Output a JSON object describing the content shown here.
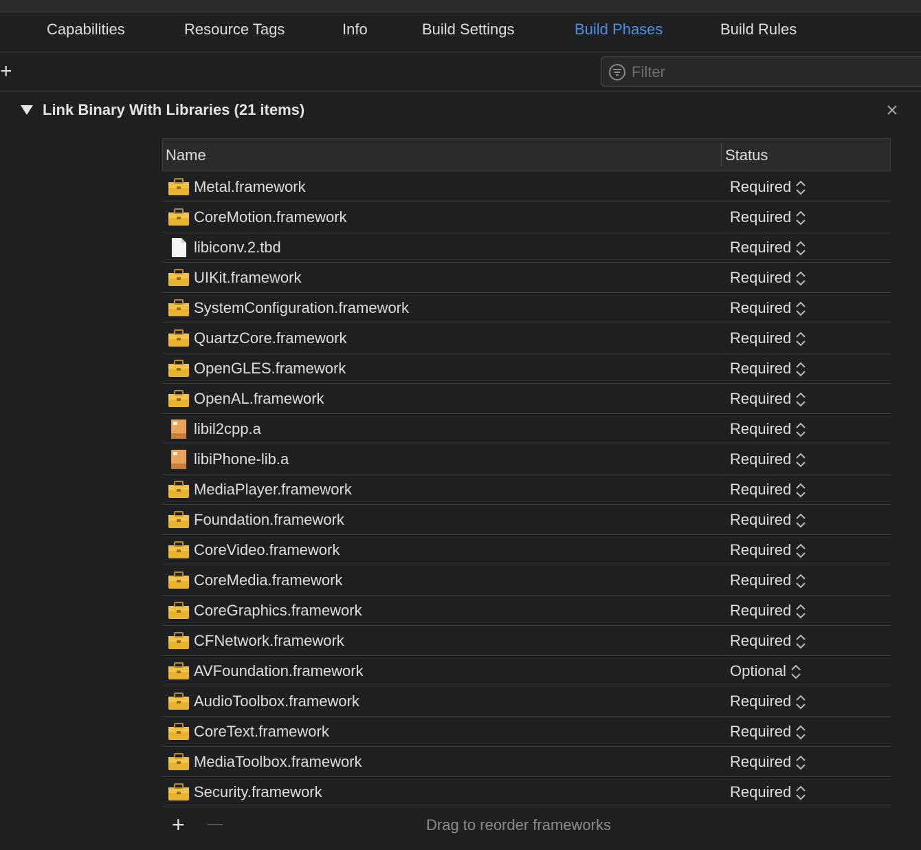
{
  "tabs": [
    {
      "label": "Capabilities",
      "selected": false
    },
    {
      "label": "Resource Tags",
      "selected": false
    },
    {
      "label": "Info",
      "selected": false
    },
    {
      "label": "Build Settings",
      "selected": false
    },
    {
      "label": "Build Phases",
      "selected": true
    },
    {
      "label": "Build Rules",
      "selected": false
    }
  ],
  "filter": {
    "placeholder": "Filter"
  },
  "phase": {
    "title": "Link Binary With Libraries (21 items)",
    "table": {
      "headers": [
        "Name",
        "Status"
      ],
      "rows": [
        {
          "name": "Metal.framework",
          "status": "Required",
          "icon": "framework"
        },
        {
          "name": "CoreMotion.framework",
          "status": "Required",
          "icon": "framework"
        },
        {
          "name": "libiconv.2.tbd",
          "status": "Required",
          "icon": "file"
        },
        {
          "name": "UIKit.framework",
          "status": "Required",
          "icon": "framework"
        },
        {
          "name": "SystemConfiguration.framework",
          "status": "Required",
          "icon": "framework"
        },
        {
          "name": "QuartzCore.framework",
          "status": "Required",
          "icon": "framework"
        },
        {
          "name": "OpenGLES.framework",
          "status": "Required",
          "icon": "framework"
        },
        {
          "name": "OpenAL.framework",
          "status": "Required",
          "icon": "framework"
        },
        {
          "name": "libil2cpp.a",
          "status": "Required",
          "icon": "archive"
        },
        {
          "name": "libiPhone-lib.a",
          "status": "Required",
          "icon": "archive"
        },
        {
          "name": "MediaPlayer.framework",
          "status": "Required",
          "icon": "framework"
        },
        {
          "name": "Foundation.framework",
          "status": "Required",
          "icon": "framework"
        },
        {
          "name": "CoreVideo.framework",
          "status": "Required",
          "icon": "framework"
        },
        {
          "name": "CoreMedia.framework",
          "status": "Required",
          "icon": "framework"
        },
        {
          "name": "CoreGraphics.framework",
          "status": "Required",
          "icon": "framework"
        },
        {
          "name": "CFNetwork.framework",
          "status": "Required",
          "icon": "framework"
        },
        {
          "name": "AVFoundation.framework",
          "status": "Optional",
          "icon": "framework"
        },
        {
          "name": "AudioToolbox.framework",
          "status": "Required",
          "icon": "framework"
        },
        {
          "name": "CoreText.framework",
          "status": "Required",
          "icon": "framework"
        },
        {
          "name": "MediaToolbox.framework",
          "status": "Required",
          "icon": "framework"
        },
        {
          "name": "Security.framework",
          "status": "Required",
          "icon": "framework"
        }
      ]
    },
    "footer": "Drag to reorder frameworks"
  }
}
